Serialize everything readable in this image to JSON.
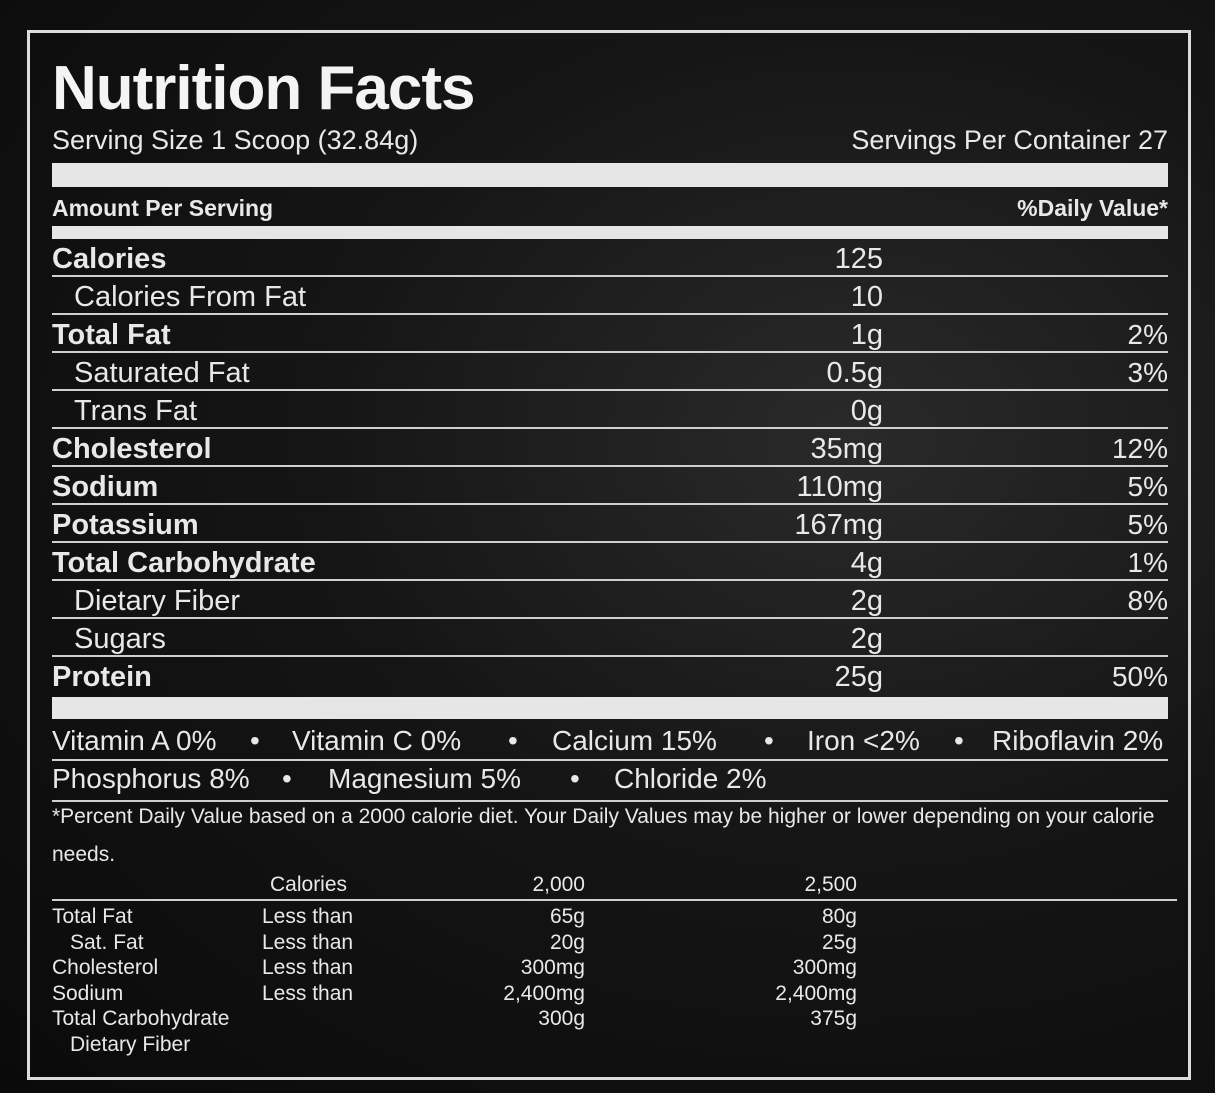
{
  "title": "Nutrition Facts",
  "serving_size": "Serving Size 1 Scoop (32.84g)",
  "servings_per_container": "Servings Per Container 27",
  "amount_per_serving": "Amount Per Serving",
  "daily_value_header": "%Daily Value*",
  "nutrients": [
    {
      "name": "Calories",
      "amount": "125",
      "dv": "",
      "bold": true,
      "indent": false
    },
    {
      "name": "Calories From Fat",
      "amount": "10",
      "dv": "",
      "bold": false,
      "indent": true
    },
    {
      "name": "Total Fat",
      "amount": "1g",
      "dv": "2%",
      "bold": true,
      "indent": false
    },
    {
      "name": "Saturated Fat",
      "amount": "0.5g",
      "dv": "3%",
      "bold": false,
      "indent": true
    },
    {
      "name": "Trans Fat",
      "amount": "0g",
      "dv": "",
      "bold": false,
      "indent": true
    },
    {
      "name": "Cholesterol",
      "amount": "35mg",
      "dv": "12%",
      "bold": true,
      "indent": false
    },
    {
      "name": "Sodium",
      "amount": "110mg",
      "dv": "5%",
      "bold": true,
      "indent": false
    },
    {
      "name": "Potassium",
      "amount": "167mg",
      "dv": "5%",
      "bold": true,
      "indent": false
    },
    {
      "name": "Total Carbohydrate",
      "amount": "4g",
      "dv": "1%",
      "bold": true,
      "indent": false
    },
    {
      "name": "Dietary Fiber",
      "amount": "2g",
      "dv": "8%",
      "bold": false,
      "indent": true
    },
    {
      "name": "Sugars",
      "amount": "2g",
      "dv": "",
      "bold": false,
      "indent": true
    },
    {
      "name": "Protein",
      "amount": "25g",
      "dv": "50%",
      "bold": true,
      "indent": false
    }
  ],
  "vitamins_line1": [
    "Vitamin A 0%",
    "Vitamin C 0%",
    "Calcium 15%",
    "Iron <2%",
    "Riboflavin 2%"
  ],
  "vitamins_line2": [
    "Phosphorus 8%",
    "Magnesium 5%",
    "Chloride 2%"
  ],
  "separator": "•",
  "footnote_1": "*Percent Daily Value based on a 2000 calorie diet. Your Daily Values may be higher or lower depending on your calorie",
  "footnote_2": "needs.",
  "dv_table": {
    "headers": {
      "label": "Calories",
      "c1": "2,000",
      "c2": "2,500"
    },
    "rows": [
      {
        "nutrient": "Total Fat",
        "qualifier": "Less than",
        "v2000": "65g",
        "v2500": "80g",
        "indent": false
      },
      {
        "nutrient": "Sat. Fat",
        "qualifier": "Less than",
        "v2000": "20g",
        "v2500": "25g",
        "indent": true
      },
      {
        "nutrient": "Cholesterol",
        "qualifier": "Less than",
        "v2000": "300mg",
        "v2500": "300mg",
        "indent": false
      },
      {
        "nutrient": "Sodium",
        "qualifier": "Less than",
        "v2000": "2,400mg",
        "v2500": "2,400mg",
        "indent": false
      },
      {
        "nutrient": "Total Carbohydrate",
        "qualifier": "",
        "v2000": "300g",
        "v2500": "375g",
        "indent": false
      },
      {
        "nutrient": "Dietary Fiber",
        "qualifier": "",
        "v2000": "",
        "v2500": "",
        "indent": true
      }
    ]
  }
}
